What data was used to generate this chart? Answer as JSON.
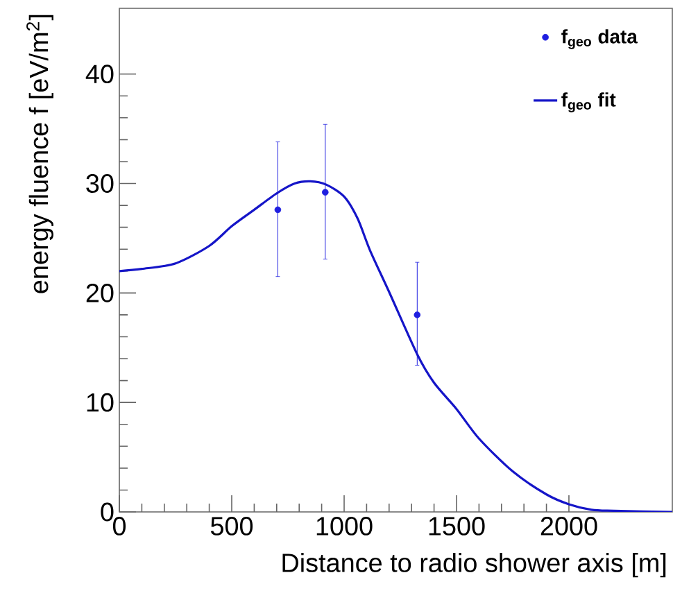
{
  "chart_data": {
    "type": "scatter",
    "xlabel": "Distance to radio shower axis [m]",
    "ylabel": "energy fluence f [eV/m$^{2}$]",
    "xlim": [
      0,
      2460
    ],
    "ylim": [
      0,
      46
    ],
    "xticks": [
      0,
      500,
      1000,
      1500,
      2000
    ],
    "yticks": [
      0,
      10,
      20,
      30,
      40
    ],
    "grid": false,
    "legend": "top right",
    "series": [
      {
        "name": "f$_{geo}$ data",
        "marker": "circle",
        "color": "#1f1fe0",
        "x": [
          705,
          916,
          1325
        ],
        "values": [
          27.6,
          29.2,
          18.0
        ],
        "errors": [
          [
            21.5,
            33.8
          ],
          [
            23.1,
            35.4
          ],
          [
            13.4,
            22.8
          ]
        ]
      },
      {
        "name": "f$_{geo}$ fit",
        "type": "line",
        "marker": "none",
        "line_style": "solid",
        "color": "#1515c8",
        "x": [
          0,
          100,
          250,
          400,
          500,
          600,
          700,
          780,
          850,
          920,
          1000,
          1060,
          1115,
          1200,
          1325,
          1400,
          1500,
          1600,
          1750,
          1900,
          2000,
          2100,
          2200,
          2460
        ],
        "values": [
          22.0,
          22.2,
          22.7,
          24.3,
          26.1,
          27.6,
          29.1,
          30.0,
          30.2,
          29.9,
          28.8,
          26.8,
          23.9,
          20.1,
          14.4,
          11.8,
          9.4,
          6.7,
          3.7,
          1.6,
          0.7,
          0.2,
          0.1,
          0.0
        ]
      }
    ]
  }
}
